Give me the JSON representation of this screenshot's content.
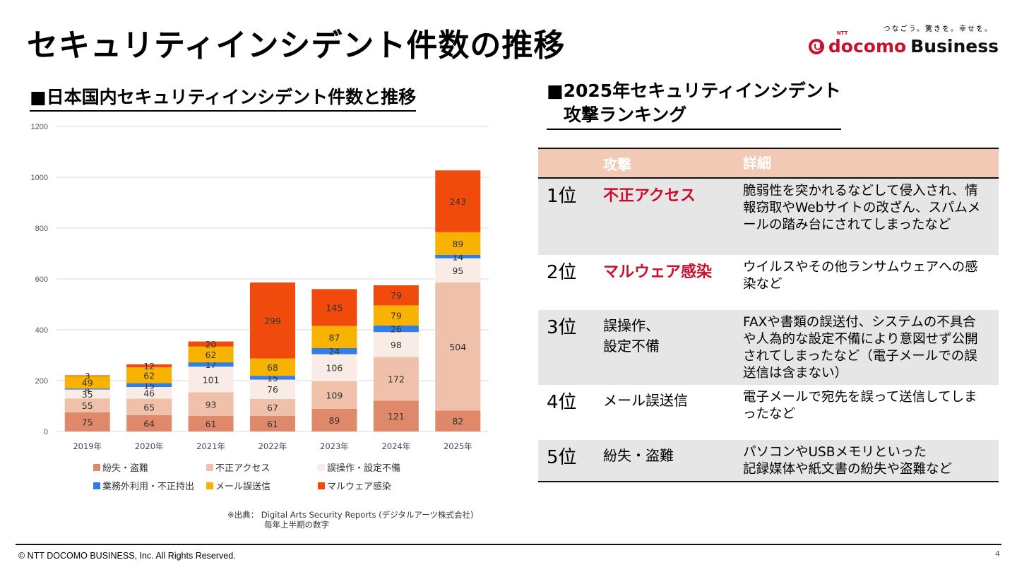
{
  "title": "セキュリティインシデント件数の推移",
  "logo": {
    "tagline": "つなごう。驚きを。幸せを。",
    "ntt": "NTT",
    "docomo": "docomo",
    "business": "Business"
  },
  "left_section_title": "■日本国内セキュリティインシデント件数と推移",
  "right_section_title_line1": "■2025年セキュリティインシデント",
  "right_section_title_line2": "攻撃ランキング",
  "chart_data": {
    "type": "bar",
    "stacked": true,
    "title": "",
    "xlabel": "",
    "ylabel": "",
    "ylim": [
      0,
      1200
    ],
    "yticks": [
      0,
      200,
      400,
      600,
      800,
      1000,
      1200
    ],
    "grid": true,
    "legend_position": "bottom",
    "categories": [
      "2019年",
      "2020年",
      "2021年",
      "2022年",
      "2023年",
      "2024年",
      "2025年"
    ],
    "series": [
      {
        "name": "紛失・盗難",
        "color": "#e0896a",
        "values": [
          75,
          64,
          61,
          61,
          89,
          121,
          82
        ]
      },
      {
        "name": "不正アクセス",
        "color": "#efc0aa",
        "values": [
          55,
          65,
          93,
          67,
          109,
          172,
          504
        ]
      },
      {
        "name": "誤操作・設定不備",
        "color": "#f9ebe5",
        "values": [
          35,
          46,
          101,
          76,
          106,
          98,
          95
        ]
      },
      {
        "name": "業務外利用・不正持出",
        "color": "#2f7fe6",
        "values": [
          4,
          15,
          17,
          15,
          24,
          26,
          14
        ]
      },
      {
        "name": "メール誤送信",
        "color": "#f8b200",
        "values": [
          49,
          62,
          62,
          68,
          87,
          79,
          89
        ]
      },
      {
        "name": "マルウェア感染",
        "color": "#f04a0c",
        "values": [
          3,
          12,
          20,
          299,
          145,
          79,
          243
        ]
      }
    ]
  },
  "source_line1": "※出典： Digital Arts Security Reports (デジタルアーツ株式会社)",
  "source_line2": "毎年上半期の数字",
  "table": {
    "headers": [
      "",
      "攻撃",
      "詳細"
    ],
    "rows": [
      {
        "rank": "1位",
        "attack": "不正アクセス",
        "highlight": true,
        "detail": "脆弱性を突かれるなどして侵入され、情報窃取やWebサイトの改ざん、スパムメールの踏み台にされてしまったなど"
      },
      {
        "rank": "2位",
        "attack": "マルウェア感染",
        "highlight": true,
        "detail": "ウイルスやその他ランサムウェアへの感染など"
      },
      {
        "rank": "3位",
        "attack": "誤操作、\n設定不備",
        "highlight": false,
        "detail": "FAXや書類の誤送付、システムの不具合や人為的な設定不備により意図せず公開されてしまったなど（電子メールでの誤送信は含まない）"
      },
      {
        "rank": "4位",
        "attack": "メール誤送信",
        "highlight": false,
        "detail": "電子メールで宛先を誤って送信してしまったなど"
      },
      {
        "rank": "5位",
        "attack": "紛失・盗難",
        "highlight": false,
        "detail": "パソコンやUSBメモリといった\n記録媒体や紙文書の紛失や盗難など"
      }
    ]
  },
  "footer": "© NTT DOCOMO BUSINESS, Inc. All Rights Reserved.",
  "page_number": "4"
}
